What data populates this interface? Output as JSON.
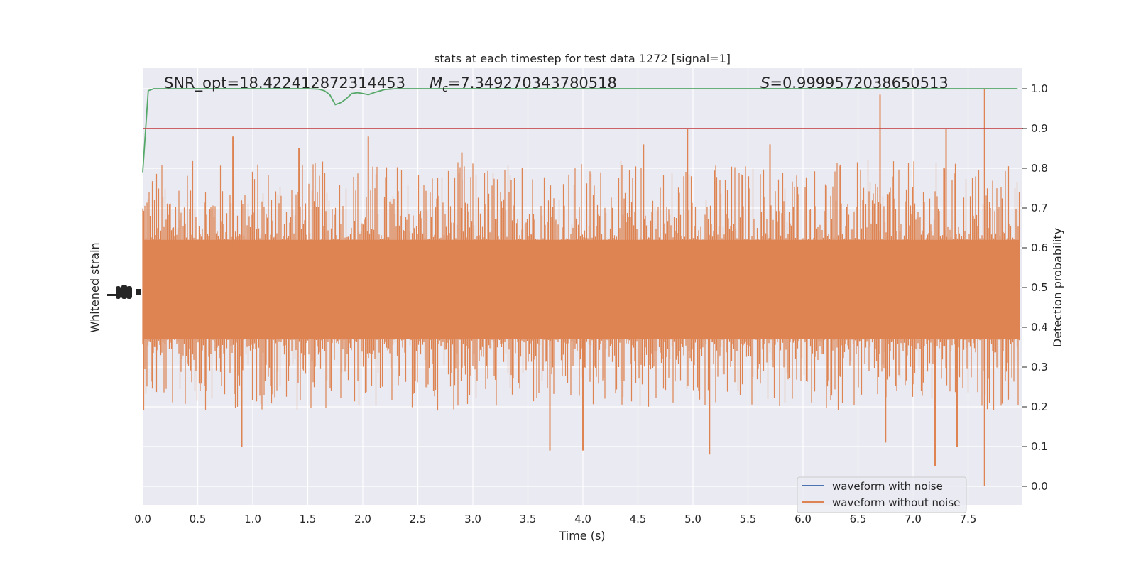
{
  "chart_data": {
    "type": "line",
    "title": "stats at each timestep for test data 1272 [signal=1]",
    "xlabel": "Time (s)",
    "ylabel_left": "Whitened strain",
    "ylabel_right": "Detection probability",
    "xlim": [
      0.0,
      8.0
    ],
    "xticks": [
      "0.0",
      "0.5",
      "1.0",
      "1.5",
      "2.0",
      "2.5",
      "3.0",
      "3.5",
      "4.0",
      "4.5",
      "5.0",
      "5.5",
      "6.0",
      "6.5",
      "7.0",
      "7.5"
    ],
    "ylim_right": [
      -0.05,
      1.05
    ],
    "yticks_right": [
      "0.0",
      "0.1",
      "0.2",
      "0.3",
      "0.4",
      "0.5",
      "0.6",
      "0.7",
      "0.8",
      "0.9",
      "1.0"
    ],
    "grid": true,
    "annotations": {
      "snr": "SNR_opt=18.422412872314453",
      "mc_symbol": "M",
      "mc_sub": "c",
      "mc_value": "=7.349270343780518",
      "s_symbol": "S",
      "s_value": "=0.9999572038650513"
    },
    "threshold": 0.9,
    "legend": {
      "placement": "lower-right",
      "entries": [
        {
          "label": "waveform with noise",
          "color": "#4c72b0"
        },
        {
          "label": "waveform without noise",
          "color": "#dd8452"
        }
      ]
    },
    "series": [
      {
        "name": "Detection probability",
        "color": "#55a868",
        "x": [
          0.0,
          0.05,
          0.1,
          0.2,
          0.3,
          0.5,
          0.8,
          1.0,
          1.2,
          1.4,
          1.5,
          1.6,
          1.65,
          1.7,
          1.75,
          1.8,
          1.85,
          1.9,
          1.95,
          2.0,
          2.05,
          2.1,
          2.2,
          2.3,
          2.4,
          2.5,
          3.0,
          4.0,
          5.0,
          6.0,
          7.0,
          7.95
        ],
        "values": [
          0.79,
          0.995,
          1.0,
          1.0,
          1.0,
          1.0,
          1.0,
          1.0,
          1.0,
          1.0,
          1.0,
          0.999,
          0.995,
          0.985,
          0.96,
          0.965,
          0.975,
          0.988,
          0.99,
          0.988,
          0.985,
          0.99,
          0.998,
          1.0,
          1.0,
          1.0,
          1.0,
          1.0,
          1.0,
          1.0,
          1.0,
          1.0
        ]
      },
      {
        "name": "Threshold",
        "color": "#c44e52",
        "x": [
          0.0,
          8.0
        ],
        "values": [
          0.9,
          0.9
        ]
      }
    ],
    "strain_band": {
      "color": "#dd8452",
      "core_low": 0.37,
      "core_high": 0.62,
      "peaks_up": [
        {
          "x": 0.82,
          "y": 0.88
        },
        {
          "x": 1.42,
          "y": 0.85
        },
        {
          "x": 2.05,
          "y": 0.88
        },
        {
          "x": 4.95,
          "y": 0.9
        },
        {
          "x": 6.7,
          "y": 0.985
        },
        {
          "x": 7.3,
          "y": 0.9
        },
        {
          "x": 7.65,
          "y": 1.0
        },
        {
          "x": 2.9,
          "y": 0.84
        },
        {
          "x": 3.45,
          "y": 0.8
        },
        {
          "x": 4.55,
          "y": 0.86
        },
        {
          "x": 5.7,
          "y": 0.86
        }
      ],
      "peaks_down": [
        {
          "x": 0.9,
          "y": 0.1
        },
        {
          "x": 3.7,
          "y": 0.09
        },
        {
          "x": 4.0,
          "y": 0.09
        },
        {
          "x": 5.15,
          "y": 0.08
        },
        {
          "x": 6.75,
          "y": 0.11
        },
        {
          "x": 7.2,
          "y": 0.05
        },
        {
          "x": 7.65,
          "y": 0.0
        },
        {
          "x": 7.4,
          "y": 0.1
        }
      ]
    }
  }
}
